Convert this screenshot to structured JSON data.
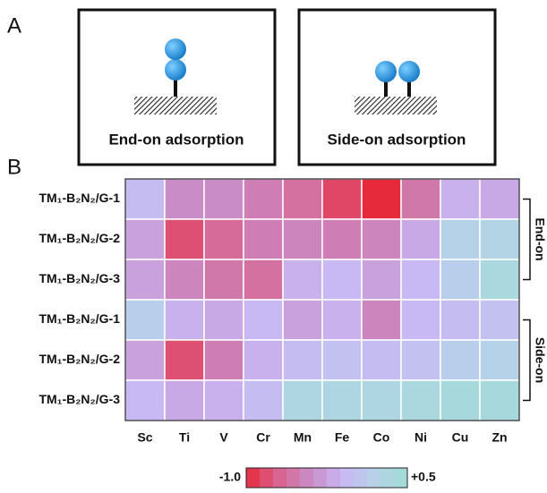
{
  "panel_labels": [
    "A",
    "B"
  ],
  "schematic": {
    "captions": [
      "End-on adsorption",
      "Side-on adsorption"
    ]
  },
  "chart_data": {
    "type": "heatmap",
    "x_categories": [
      "Sc",
      "Ti",
      "V",
      "Cr",
      "Mn",
      "Fe",
      "Co",
      "Ni",
      "Cu",
      "Zn"
    ],
    "y_categories": [
      "TM₁-B₂N₂/G-1",
      "TM₁-B₂N₂/G-2",
      "TM₁-B₂N₂/G-3",
      "TM₁-B₂N₂/G-1",
      "TM₁-B₂N₂/G-2",
      "TM₁-B₂N₂/G-3"
    ],
    "groups": [
      "End-on",
      "Side-on"
    ],
    "values": [
      [
        -0.05,
        -0.4,
        -0.4,
        -0.5,
        -0.6,
        -0.85,
        -1.0,
        -0.55,
        -0.15,
        -0.2
      ],
      [
        -0.25,
        -0.8,
        -0.65,
        -0.5,
        -0.45,
        -0.5,
        -0.45,
        -0.2,
        0.2,
        0.25
      ],
      [
        -0.25,
        -0.45,
        -0.55,
        -0.6,
        -0.15,
        -0.1,
        -0.25,
        -0.1,
        0.15,
        0.35
      ],
      [
        0.15,
        -0.15,
        -0.2,
        -0.1,
        -0.25,
        -0.15,
        -0.45,
        -0.1,
        -0.05,
        0.0
      ],
      [
        -0.25,
        -0.8,
        -0.5,
        -0.15,
        -0.05,
        0.0,
        -0.05,
        0.0,
        0.15,
        0.2
      ],
      [
        -0.1,
        -0.2,
        -0.15,
        -0.05,
        0.3,
        0.3,
        0.3,
        0.35,
        0.4,
        0.4
      ]
    ],
    "zlim": [
      -1.0,
      0.5
    ],
    "zticks": [
      {
        "value": -1.0,
        "label": "-1.0"
      },
      {
        "value": 0.5,
        "label": "+0.5"
      }
    ],
    "colorscale": [
      "#e62a3c",
      "#d9638f",
      "#c98cc6",
      "#c8b8f4",
      "#b6d2e8",
      "#9fddd6"
    ]
  }
}
